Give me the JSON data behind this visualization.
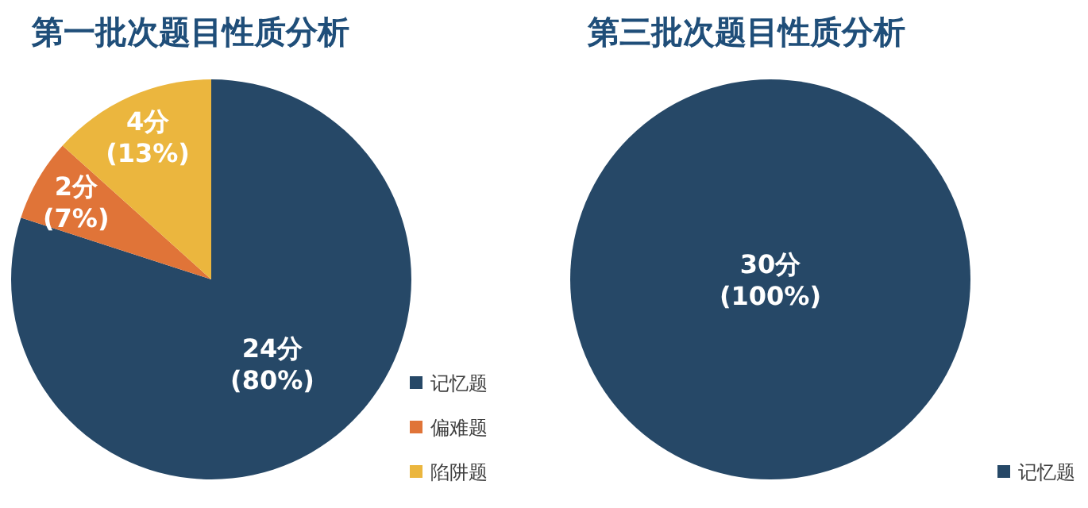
{
  "chart_data": [
    {
      "type": "pie",
      "title": "第一批次题目性质分析",
      "categories": [
        "记忆题",
        "偏难题",
        "陷阱题"
      ],
      "values": [
        24,
        2,
        4
      ],
      "colors": [
        "#264867",
        "#e07438",
        "#ebb63e"
      ],
      "value_labels": [
        "24分 (80%)",
        "2分 (7%)",
        "4分 (13%)"
      ],
      "legend": "bottom right"
    },
    {
      "type": "pie",
      "title": "第三批次题目性质分析",
      "categories": [
        "记忆题"
      ],
      "values": [
        30
      ],
      "colors": [
        "#264867"
      ],
      "value_labels": [
        "30分 (100%)"
      ],
      "legend": "bottom right"
    }
  ]
}
